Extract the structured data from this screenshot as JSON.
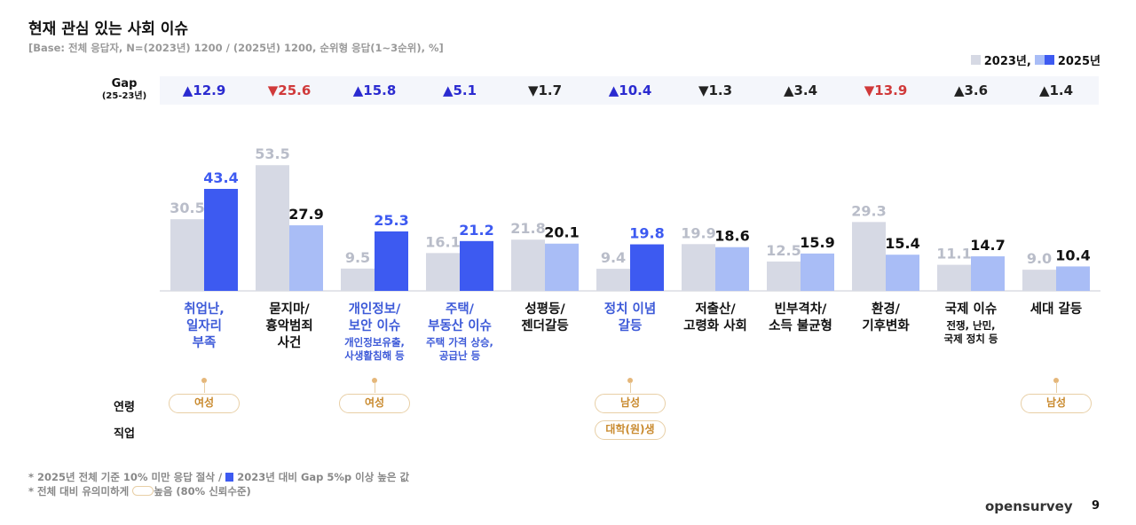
{
  "title": "현재 관심 있는 사회 이슈",
  "subtitle": "[Base: 전체 응답자, N=(2023년) 1200 / (2025년) 1200, 순위형 응답(1~3순위), %]",
  "gap_label": "Gap",
  "gap_sublabel": "(25-23년)",
  "row_labels": {
    "age": "연령",
    "job": "직업"
  },
  "notes": [
    "* 2025년 전체 기준 10% 미만 응답 절삭 / ",
    "2023년 대비 Gap 5%p 이상 높은 값",
    "* 전체 대비 유의미하게 ",
    "높음 (80% 신뢰수준)"
  ],
  "logo": "opensurvey",
  "page_number": "9",
  "colors": {
    "y2023": "#d6d9e4",
    "y2025_light": "#a9bdf6",
    "y2025_highlight": "#3d5af1",
    "up": "#2b2bd0",
    "down": "#d0393a",
    "neutral": "#222222"
  },
  "chart_data": {
    "type": "bar",
    "legend": [
      "2023년,",
      "2025년"
    ],
    "legend_placement": "top-right",
    "categories": [
      {
        "label": [
          "취업난,",
          "일자리",
          "부족"
        ],
        "sub": [],
        "highlight": true,
        "gap": "▲12.9",
        "gap_dir": "up",
        "pills": [
          {
            "row": "age",
            "text": "여성"
          }
        ]
      },
      {
        "label": [
          "묻지마/",
          "흉악범죄",
          "사건"
        ],
        "sub": [],
        "highlight": false,
        "gap": "▼25.6",
        "gap_dir": "down",
        "pills": []
      },
      {
        "label": [
          "개인정보/",
          "보안 이슈"
        ],
        "sub": [
          "개인정보유출,",
          "사생활침해 등"
        ],
        "highlight": true,
        "gap": "▲15.8",
        "gap_dir": "up",
        "pills": [
          {
            "row": "age",
            "text": "여성"
          }
        ]
      },
      {
        "label": [
          "주택/",
          "부동산 이슈"
        ],
        "sub": [
          "주택 가격 상승,",
          "공급난 등"
        ],
        "highlight": true,
        "gap": "▲5.1",
        "gap_dir": "up",
        "pills": []
      },
      {
        "label": [
          "성평등/",
          "젠더갈등"
        ],
        "sub": [],
        "highlight": false,
        "gap": "▼1.7",
        "gap_dir": "neutral",
        "pills": []
      },
      {
        "label": [
          "정치 이념",
          "갈등"
        ],
        "sub": [],
        "highlight": true,
        "gap": "▲10.4",
        "gap_dir": "up",
        "pills": [
          {
            "row": "age",
            "text": "남성"
          },
          {
            "row": "job",
            "text": "대학(원)생"
          }
        ]
      },
      {
        "label": [
          "저출산/",
          "고령화 사회"
        ],
        "sub": [],
        "highlight": false,
        "gap": "▼1.3",
        "gap_dir": "neutral",
        "pills": []
      },
      {
        "label": [
          "빈부격차/",
          "소득 불균형"
        ],
        "sub": [],
        "highlight": false,
        "gap": "▲3.4",
        "gap_dir": "neutral",
        "pills": []
      },
      {
        "label": [
          "환경/",
          "기후변화"
        ],
        "sub": [],
        "highlight": false,
        "gap": "▼13.9",
        "gap_dir": "down",
        "pills": []
      },
      {
        "label": [
          "국제 이슈"
        ],
        "sub": [
          "전쟁, 난민,",
          "국제 정치 등"
        ],
        "highlight": false,
        "gap": "▲3.6",
        "gap_dir": "neutral",
        "pills": []
      },
      {
        "label": [
          "세대 갈등"
        ],
        "sub": [],
        "highlight": false,
        "gap": "▲1.4",
        "gap_dir": "neutral",
        "pills": [
          {
            "row": "age",
            "text": "남성"
          }
        ]
      }
    ],
    "series": [
      {
        "name": "2023년",
        "values": [
          30.5,
          53.5,
          9.5,
          16.1,
          21.8,
          9.4,
          19.9,
          12.5,
          29.3,
          11.1,
          9.0
        ]
      },
      {
        "name": "2025년",
        "values": [
          43.4,
          27.9,
          25.3,
          21.2,
          20.1,
          19.8,
          18.6,
          15.9,
          15.4,
          14.7,
          10.4
        ]
      }
    ],
    "ylim": [
      0,
      60
    ]
  }
}
